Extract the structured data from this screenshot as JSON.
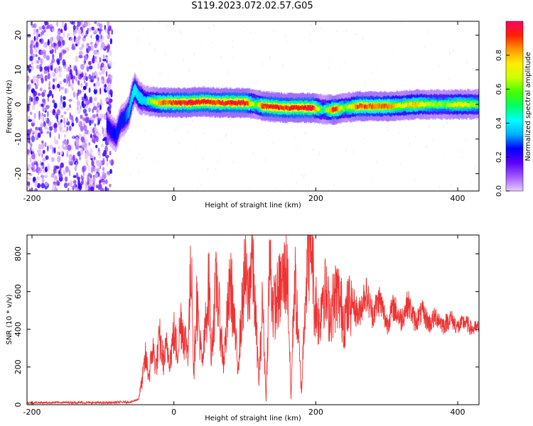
{
  "figure": {
    "title": "S119.2023.072.02.57.G05"
  },
  "chart_data": [
    {
      "type": "heatmap",
      "xlabel": "Height of straight line (km)",
      "ylabel": "Frequency (Hz)",
      "xlim": [
        -207,
        430
      ],
      "ylim": [
        -25,
        24
      ],
      "xticks": [
        -200,
        0,
        200,
        400
      ],
      "yticks": [
        -20,
        -10,
        0,
        10,
        20
      ],
      "colorbar": {
        "label": "Normalized spectral amplitude",
        "range": [
          0,
          1
        ],
        "ticks": [
          0.0,
          0.2,
          0.4,
          0.6,
          0.8
        ],
        "colormap": [
          "#e8ccff",
          "#a259ff",
          "#5a00ff",
          "#0000ff",
          "#00b0ff",
          "#00ffff",
          "#00ff66",
          "#44ff00",
          "#ccff00",
          "#ffee00",
          "#ff9900",
          "#ff2000",
          "#ff0066"
        ]
      },
      "noise_region_x": [
        -207,
        -97
      ],
      "trace": {
        "x": [
          -95,
          -88,
          -82,
          -76,
          -70,
          -64,
          -60,
          -56,
          -50,
          -40,
          -20,
          0,
          20,
          40,
          60,
          80,
          100,
          115,
          125,
          145,
          155,
          175,
          195,
          210,
          225,
          240,
          260,
          280,
          300,
          320,
          340,
          360,
          380,
          400,
          430
        ],
        "y": [
          -6,
          -8,
          -9,
          -5,
          -4,
          -2,
          2,
          4.5,
          2,
          1,
          0.5,
          0.5,
          0.5,
          0.8,
          0.5,
          0.5,
          0.5,
          0,
          -0.5,
          -0.8,
          -1,
          -1,
          -1,
          -1.5,
          -1.5,
          -1,
          -0.5,
          -0.5,
          -0.5,
          -0.3,
          0,
          0,
          0,
          0,
          0
        ],
        "amp": [
          0.3,
          0.3,
          0.35,
          0.35,
          0.35,
          0.45,
          0.5,
          0.55,
          0.5,
          0.5,
          0.85,
          0.9,
          0.95,
          0.95,
          0.9,
          0.95,
          0.95,
          0.6,
          0.9,
          0.95,
          0.9,
          0.95,
          0.95,
          0.5,
          0.95,
          0.6,
          0.9,
          0.85,
          0.85,
          0.7,
          0.8,
          0.65,
          0.6,
          0.75,
          0.6
        ]
      }
    },
    {
      "type": "line",
      "xlabel": "Height of straight line (km)",
      "ylabel": "SNR (10 * v/v)",
      "xlim": [
        -207,
        430
      ],
      "ylim": [
        0,
        900
      ],
      "xticks": [
        -200,
        0,
        200,
        400
      ],
      "yticks": [
        0,
        200,
        400,
        600,
        800
      ],
      "color": "#ee3333",
      "series": [
        {
          "x": [
            -207,
            -150,
            -100,
            -60,
            -50,
            -45,
            -40,
            -35,
            -30,
            -25,
            -20,
            -15,
            -10,
            -5,
            0,
            5,
            10,
            15,
            20,
            25,
            28,
            32,
            40,
            50,
            52,
            60,
            70,
            80,
            90,
            100,
            105,
            110,
            120,
            125,
            130,
            135,
            140,
            150,
            160,
            165,
            170,
            175,
            180,
            185,
            190,
            195,
            198,
            200,
            205,
            210,
            220,
            230,
            240,
            250,
            260,
            270,
            280,
            290,
            300,
            310,
            320,
            330,
            340,
            350,
            360,
            370,
            380,
            390,
            400,
            410,
            420,
            430
          ],
          "y": [
            10,
            12,
            10,
            15,
            30,
            120,
            250,
            150,
            300,
            200,
            350,
            230,
            300,
            250,
            380,
            280,
            450,
            350,
            300,
            810,
            150,
            560,
            200,
            670,
            250,
            650,
            220,
            660,
            200,
            700,
            560,
            820,
            120,
            550,
            20,
            780,
            500,
            620,
            720,
            20,
            700,
            380,
            60,
            600,
            820,
            880,
            500,
            550,
            420,
            640,
            480,
            600,
            450,
            560,
            470,
            600,
            480,
            560,
            430,
            520,
            450,
            540,
            440,
            490,
            430,
            470,
            420,
            460,
            410,
            440,
            400,
            410
          ]
        }
      ]
    }
  ]
}
